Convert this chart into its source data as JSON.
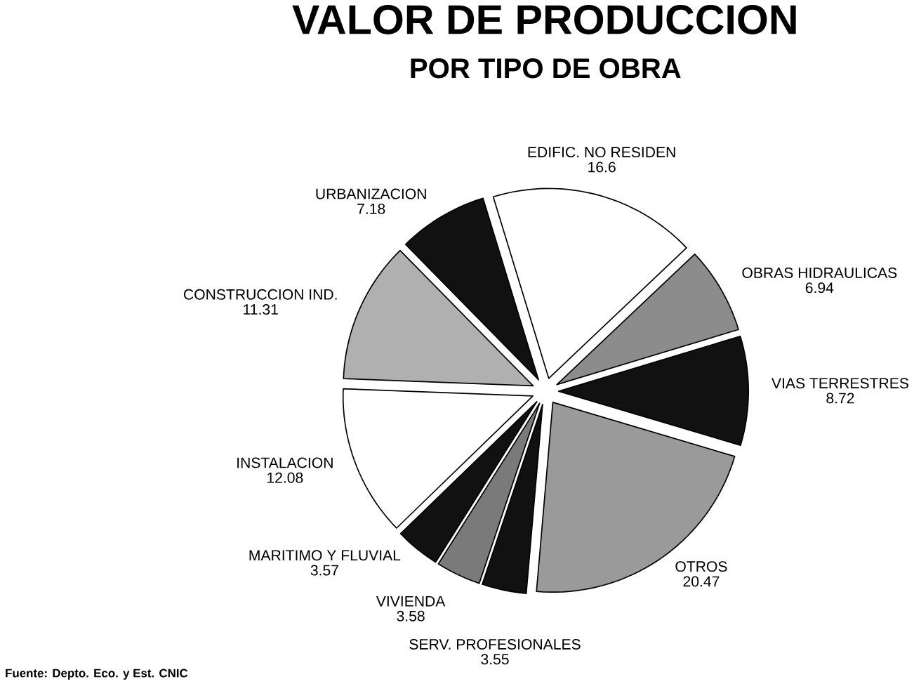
{
  "chart_data": {
    "type": "pie",
    "title": "VALOR DE PRODUCCION",
    "subtitle": "POR TIPO DE OBRA",
    "categories": [
      "EDIFIC. NO RESIDEN",
      "OBRAS HIDRAULICAS",
      "VIAS TERRESTRES",
      "OTROS",
      "SERV. PROFESIONALES",
      "VIVIENDA",
      "MARITIMO Y FLUVIAL",
      "INSTALACION",
      "CONSTRUCCION IND.",
      "URBANIZACION"
    ],
    "values": [
      16.6,
      6.94,
      8.72,
      20.47,
      3.55,
      3.58,
      3.57,
      12.08,
      11.31,
      7.18
    ],
    "colors": [
      "#ffffff",
      "#8c8c8c",
      "#111111",
      "#9a9a9a",
      "#111111",
      "#7a7a7a",
      "#111111",
      "#ffffff",
      "#b0b0b0",
      "#111111"
    ],
    "data_labels": true,
    "annotations": [
      "Fuente: Depto. Eco. y Est. CNIC"
    ]
  }
}
